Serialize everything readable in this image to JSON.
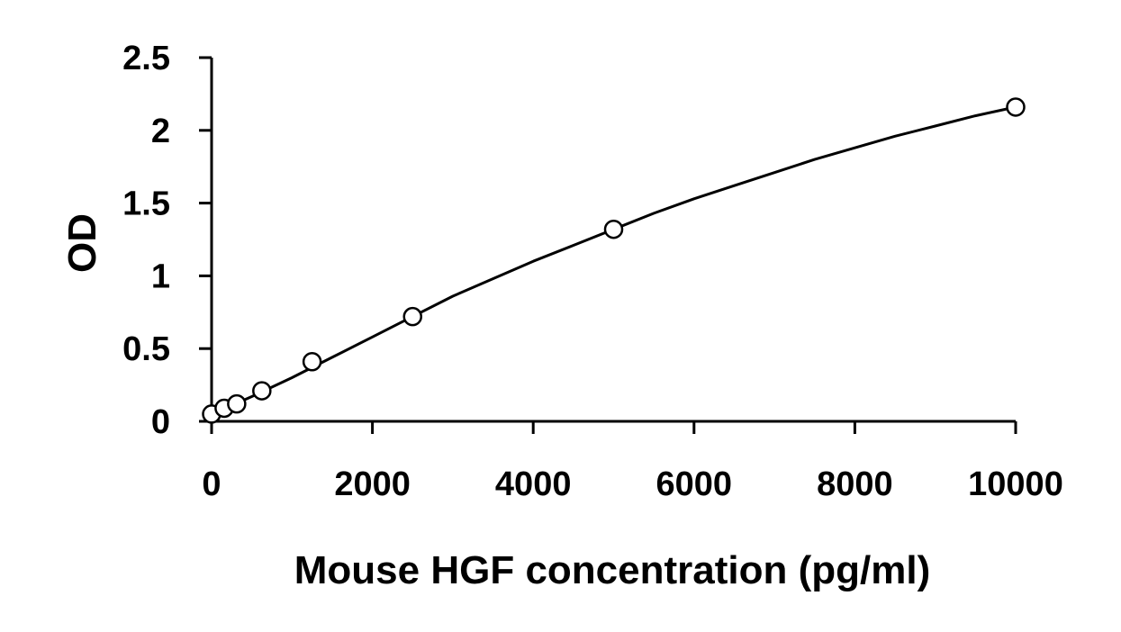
{
  "chart_data": {
    "type": "scatter",
    "title": "",
    "xlabel": "Mouse HGF concentration (pg/ml)",
    "ylabel": "OD",
    "xlim": [
      0,
      10000
    ],
    "ylim": [
      0,
      2.5
    ],
    "x_ticks": [
      0,
      2000,
      4000,
      6000,
      8000,
      10000
    ],
    "y_ticks": [
      0,
      0.5,
      1,
      1.5,
      2,
      2.5
    ],
    "x_tick_labels": [
      "0",
      "2000",
      "4000",
      "6000",
      "8000",
      "10000"
    ],
    "y_tick_labels": [
      "0",
      "0.5",
      "1",
      "1.5",
      "2",
      "2.5"
    ],
    "grid": false,
    "legend": "none",
    "series": [
      {
        "marker": "open-circle",
        "x": [
          0,
          156,
          312,
          625,
          1250,
          2500,
          5000,
          10000
        ],
        "y": [
          0.05,
          0.09,
          0.12,
          0.21,
          0.41,
          0.72,
          1.32,
          2.16
        ]
      }
    ],
    "fit_curve": {
      "style": "smooth-line",
      "x": [
        50,
        500,
        1000,
        1500,
        2000,
        2500,
        3000,
        3500,
        4000,
        4500,
        5000,
        5500,
        6000,
        6500,
        7000,
        7500,
        8000,
        8500,
        9000,
        9500,
        10000
      ],
      "y": [
        0.06,
        0.17,
        0.3,
        0.44,
        0.58,
        0.72,
        0.86,
        0.98,
        1.1,
        1.21,
        1.32,
        1.43,
        1.53,
        1.62,
        1.71,
        1.8,
        1.88,
        1.96,
        2.03,
        2.1,
        2.16
      ]
    }
  },
  "colors": {
    "line": "#000000",
    "marker_fill": "#ffffff",
    "background": "#ffffff"
  }
}
